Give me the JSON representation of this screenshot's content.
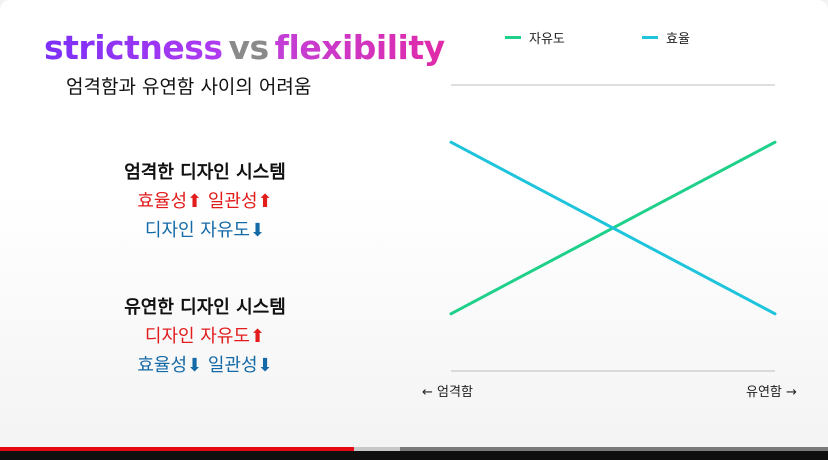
{
  "title": {
    "strict": "strictness",
    "vs": "vs",
    "flex": "flexibility"
  },
  "subtitle": "엄격함과 유연함 사이의 어려움",
  "strict_block": {
    "heading": "엄격한 디자인 시스템",
    "line1_a": "효율성",
    "line1_b": "일관성",
    "line2": "디자인 자유도"
  },
  "flex_block": {
    "heading": "유연한 디자인 시스템",
    "line1": "디자인 자유도",
    "line2_a": "효율성",
    "line2_b": "일관성"
  },
  "arrows": {
    "up": "⬆",
    "down": "⬇"
  },
  "axis": {
    "left": "← 엄격함",
    "right": "유연함 →"
  },
  "colors": {
    "freedom": "#1fd08a",
    "efficiency": "#1ec4dc",
    "red": "#e21b1b",
    "blue": "#1469a7"
  },
  "chart_data": {
    "type": "line",
    "x": [
      "엄격함",
      "유연함"
    ],
    "series": [
      {
        "name": "자유도",
        "values": [
          0.2,
          0.8
        ]
      },
      {
        "name": "효율",
        "values": [
          0.8,
          0.2
        ]
      }
    ],
    "xlabel": "",
    "ylabel": "",
    "ylim": [
      0,
      1
    ],
    "grid": false,
    "legend": "top"
  },
  "video": {
    "progress": 0.427,
    "buffered": 0.483
  }
}
